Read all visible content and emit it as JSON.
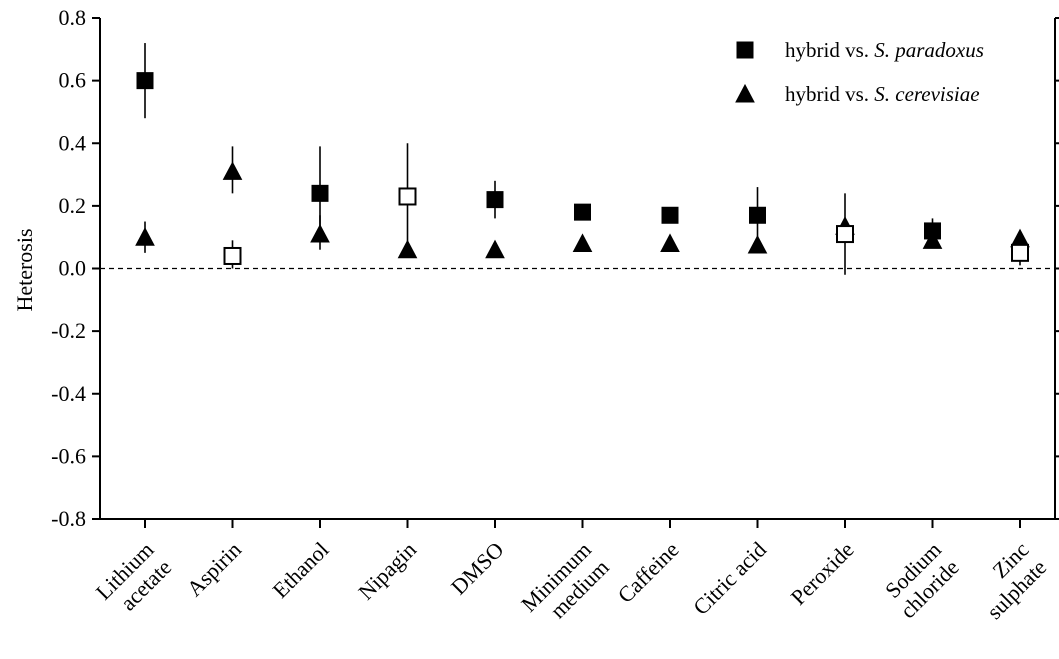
{
  "chart_data": {
    "type": "scatter",
    "title": "",
    "xlabel": "",
    "ylabel": "Heterosis",
    "ylim": [
      -0.8,
      0.8
    ],
    "yticks": [
      "0.8",
      "0.6",
      "0.4",
      "0.2",
      "0.0",
      "-0.2",
      "-0.4",
      "-0.6",
      "-0.8"
    ],
    "ytick_values": [
      0.8,
      0.6,
      0.4,
      0.2,
      0.0,
      -0.2,
      -0.4,
      -0.6,
      -0.8
    ],
    "reference_line": 0.0,
    "grid": false,
    "legend_position": "top-right",
    "categories": [
      [
        "Lithium",
        "acetate"
      ],
      [
        "Aspirin"
      ],
      [
        "Ethanol"
      ],
      [
        "Nipagin"
      ],
      [
        "DMSO"
      ],
      [
        "Minimum",
        "medium"
      ],
      [
        "Caffeine"
      ],
      [
        "Citric acid"
      ],
      [
        "Peroxide"
      ],
      [
        "Sodium",
        "chloride"
      ],
      [
        "Zinc",
        "sulphate"
      ]
    ],
    "series": [
      {
        "name": "hybrid vs. S. paradoxus",
        "name_parts": [
          "hybrid vs. ",
          "S. paradoxus"
        ],
        "marker": "square",
        "values": [
          0.6,
          0.04,
          0.24,
          0.23,
          0.22,
          0.18,
          0.17,
          0.17,
          0.11,
          0.12,
          0.05
        ],
        "error": [
          [
            0.48,
            0.72
          ],
          [
            0.0,
            0.09
          ],
          [
            0.1,
            0.39
          ],
          [
            0.06,
            0.4
          ],
          [
            0.16,
            0.28
          ],
          null,
          null,
          [
            0.08,
            0.26
          ],
          [
            -0.02,
            0.24
          ],
          [
            0.1,
            0.16
          ],
          [
            0.01,
            0.09
          ]
        ],
        "filled": [
          true,
          false,
          true,
          false,
          true,
          true,
          true,
          true,
          false,
          true,
          false
        ]
      },
      {
        "name": "hybrid vs. S. cerevisiae",
        "name_parts": [
          "hybrid vs. ",
          "S. cerevisiae"
        ],
        "marker": "triangle",
        "values": [
          0.1,
          0.31,
          0.11,
          0.06,
          0.06,
          0.08,
          0.08,
          0.075,
          0.135,
          0.09,
          0.095
        ],
        "error": [
          [
            0.05,
            0.15
          ],
          [
            0.24,
            0.39
          ],
          [
            0.06,
            0.17
          ],
          null,
          null,
          null,
          null,
          null,
          null,
          null,
          null
        ],
        "filled": [
          true,
          true,
          true,
          true,
          true,
          true,
          true,
          true,
          true,
          true,
          true
        ]
      }
    ]
  }
}
